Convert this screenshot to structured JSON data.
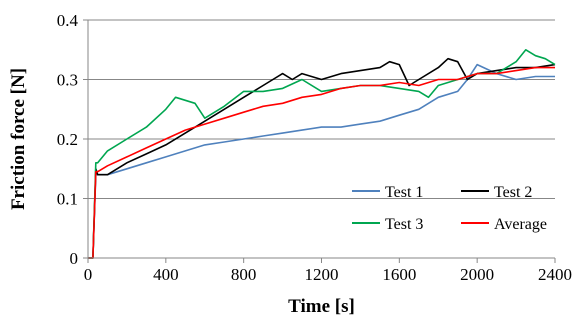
{
  "chart_data": {
    "type": "line",
    "title": "",
    "xlabel": "Time [s]",
    "ylabel": "Friction force [N]",
    "xlim": [
      0,
      2400
    ],
    "ylim": [
      0,
      0.4
    ],
    "xticks": [
      "0",
      "400",
      "800",
      "1200",
      "1600",
      "2000",
      "2400"
    ],
    "yticks": [
      "0",
      "0.1",
      "0.2",
      "0.3",
      "0.4"
    ],
    "grid": "horizontal",
    "legend_position": "bottom-right",
    "series": [
      {
        "name": "Test 1",
        "color": "#4f81bd",
        "x": [
          0,
          25,
          40,
          50,
          100,
          200,
          300,
          400,
          500,
          600,
          700,
          800,
          900,
          1000,
          1100,
          1200,
          1300,
          1400,
          1500,
          1600,
          1700,
          1800,
          1900,
          1950,
          2000,
          2100,
          2200,
          2300,
          2400
        ],
        "y": [
          0,
          0,
          0.14,
          0.14,
          0.14,
          0.15,
          0.16,
          0.17,
          0.18,
          0.19,
          0.195,
          0.2,
          0.205,
          0.21,
          0.215,
          0.22,
          0.22,
          0.225,
          0.23,
          0.24,
          0.25,
          0.27,
          0.28,
          0.3,
          0.325,
          0.31,
          0.3,
          0.305,
          0.305
        ]
      },
      {
        "name": "Test 2",
        "color": "#000000",
        "x": [
          0,
          25,
          40,
          50,
          100,
          200,
          300,
          400,
          500,
          600,
          700,
          800,
          900,
          950,
          1000,
          1050,
          1100,
          1200,
          1300,
          1400,
          1500,
          1550,
          1600,
          1650,
          1700,
          1800,
          1850,
          1900,
          1950,
          2000,
          2100,
          2200,
          2300,
          2400
        ],
        "y": [
          0,
          0,
          0.15,
          0.14,
          0.14,
          0.16,
          0.175,
          0.19,
          0.21,
          0.23,
          0.25,
          0.27,
          0.29,
          0.3,
          0.31,
          0.3,
          0.31,
          0.3,
          0.31,
          0.315,
          0.32,
          0.33,
          0.325,
          0.29,
          0.3,
          0.32,
          0.335,
          0.33,
          0.3,
          0.31,
          0.315,
          0.32,
          0.32,
          0.325
        ]
      },
      {
        "name": "Test 3",
        "color": "#00a650",
        "x": [
          0,
          25,
          40,
          50,
          100,
          200,
          300,
          400,
          450,
          500,
          550,
          600,
          700,
          800,
          900,
          1000,
          1100,
          1200,
          1300,
          1400,
          1500,
          1600,
          1700,
          1750,
          1800,
          1900,
          2000,
          2100,
          2200,
          2250,
          2300,
          2350,
          2400
        ],
        "y": [
          0,
          0,
          0.16,
          0.16,
          0.18,
          0.2,
          0.22,
          0.25,
          0.27,
          0.265,
          0.26,
          0.235,
          0.255,
          0.28,
          0.28,
          0.285,
          0.3,
          0.28,
          0.285,
          0.29,
          0.29,
          0.285,
          0.28,
          0.27,
          0.29,
          0.3,
          0.31,
          0.31,
          0.33,
          0.35,
          0.34,
          0.335,
          0.325
        ]
      },
      {
        "name": "Average",
        "color": "#ff0000",
        "x": [
          0,
          25,
          40,
          50,
          100,
          200,
          300,
          400,
          500,
          600,
          700,
          800,
          900,
          1000,
          1100,
          1200,
          1300,
          1400,
          1500,
          1600,
          1700,
          1800,
          1900,
          2000,
          2100,
          2200,
          2300,
          2400
        ],
        "y": [
          0,
          0,
          0.145,
          0.145,
          0.155,
          0.17,
          0.185,
          0.2,
          0.215,
          0.225,
          0.235,
          0.245,
          0.255,
          0.26,
          0.27,
          0.275,
          0.285,
          0.29,
          0.29,
          0.295,
          0.29,
          0.3,
          0.3,
          0.31,
          0.31,
          0.315,
          0.32,
          0.32
        ]
      }
    ]
  }
}
